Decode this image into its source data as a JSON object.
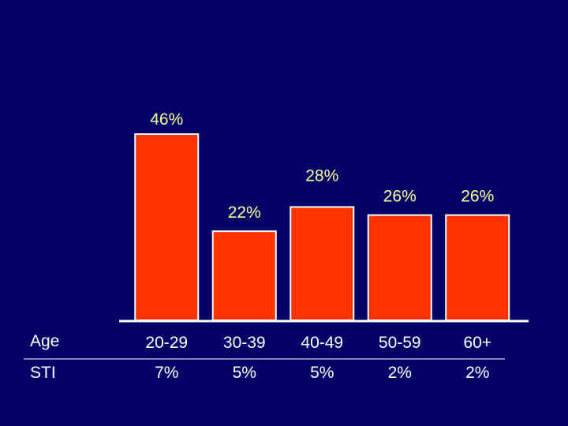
{
  "chart_data": {
    "type": "bar",
    "categories": [
      "20-29",
      "30-39",
      "40-49",
      "50-59",
      "60+"
    ],
    "values": [
      46,
      22,
      28,
      26,
      26
    ],
    "value_labels": [
      "46%",
      "22%",
      "28%",
      "26%",
      "26%"
    ],
    "ylim": [
      0,
      50
    ],
    "grid": false,
    "title": "",
    "xlabel": "",
    "ylabel": "",
    "row_headers": {
      "age": "Age",
      "sti": "STI"
    },
    "sti_values": [
      "7%",
      "5%",
      "5%",
      "2%",
      "2%"
    ],
    "colors": {
      "background": "#000066",
      "bar": "#ff3300",
      "bar_outline": "#ffffff",
      "value_text": "#ffff99",
      "row_text": "#ffffff"
    }
  }
}
